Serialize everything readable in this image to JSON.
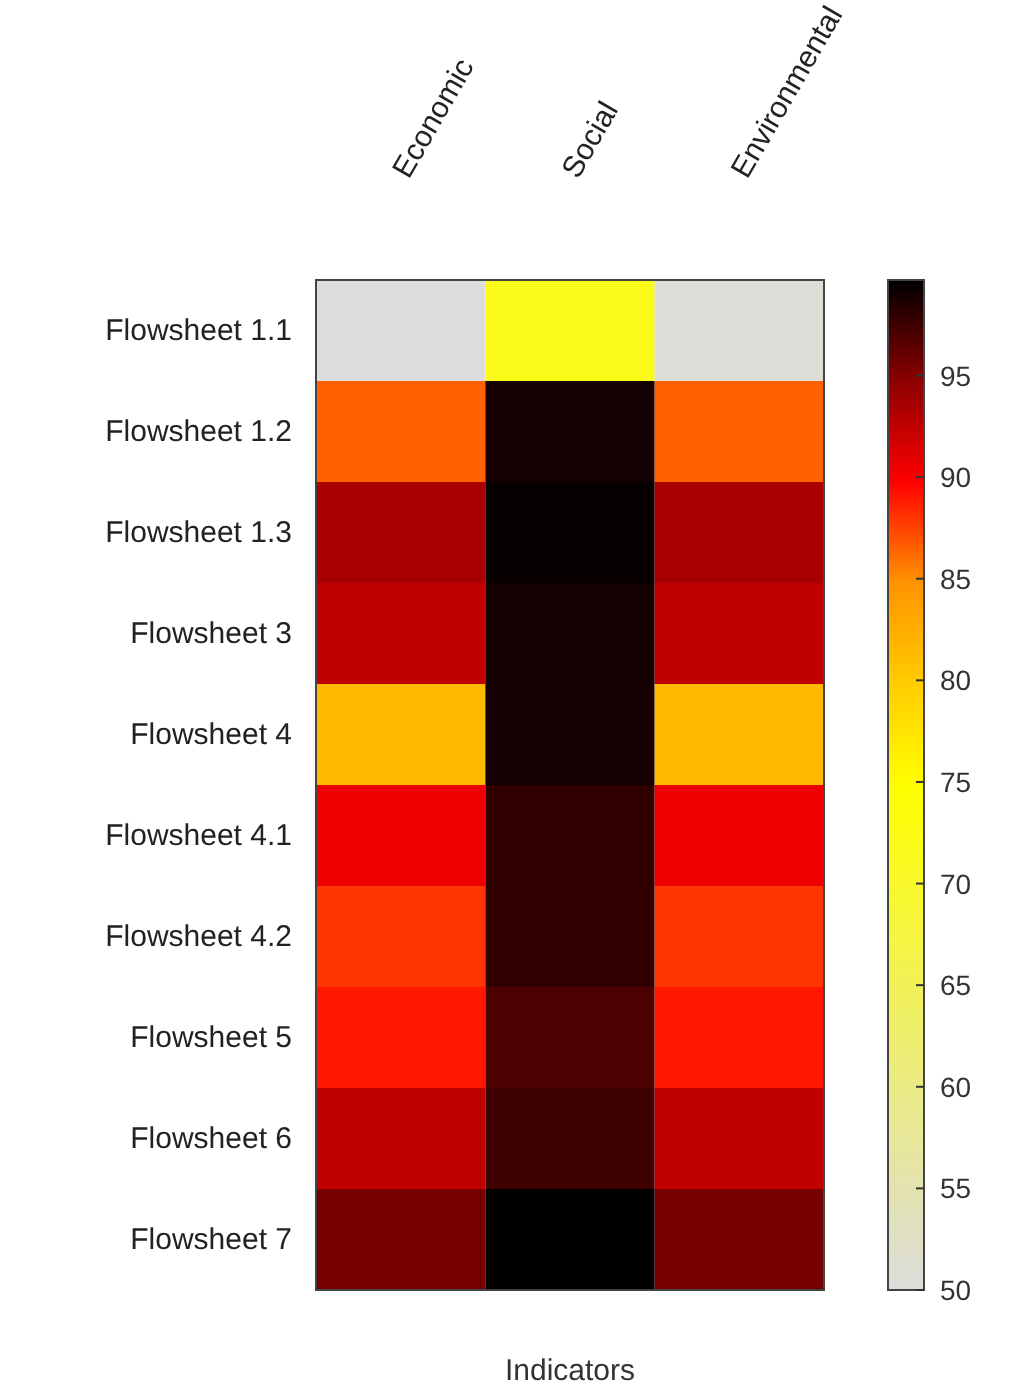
{
  "chart_data": {
    "type": "heatmap",
    "xlabel": "Indicators",
    "categories": [
      "Economic",
      "Social",
      "Environmental"
    ],
    "y_categories": [
      "Flowsheet 1.1",
      "Flowsheet 1.2",
      "Flowsheet 1.3",
      "Flowsheet 3",
      "Flowsheet 4",
      "Flowsheet 4.1",
      "Flowsheet 4.2",
      "Flowsheet 5",
      "Flowsheet 6",
      "Flowsheet 7"
    ],
    "cells": [
      [
        50,
        72,
        50.5
      ],
      [
        86.5,
        99,
        86.5
      ],
      [
        93.5,
        99.5,
        93.5
      ],
      [
        92.5,
        99,
        92.5
      ],
      [
        81.5,
        99,
        81.5
      ],
      [
        90.5,
        98,
        90.5
      ],
      [
        88,
        98,
        88
      ],
      [
        89,
        97,
        89
      ],
      [
        92.5,
        97.5,
        92.5
      ],
      [
        95.5,
        99.7,
        95.5
      ]
    ],
    "clim": [
      50,
      99.7
    ],
    "cticks": [
      50,
      55,
      60,
      65,
      70,
      75,
      80,
      85,
      90,
      95
    ]
  }
}
